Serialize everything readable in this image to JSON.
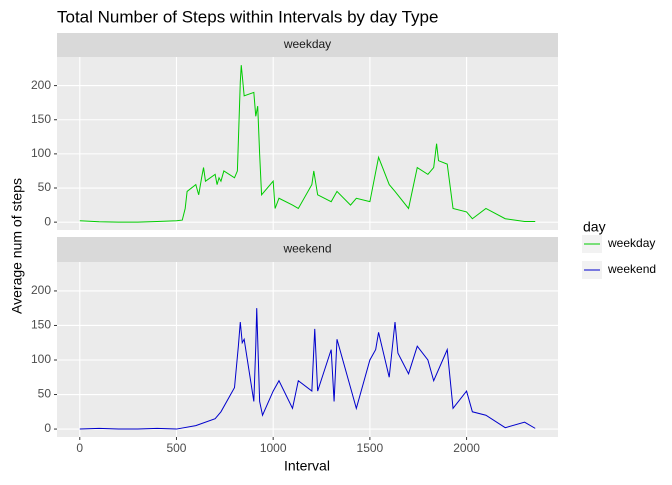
{
  "chart_data": {
    "type": "line",
    "title": "Total Number of Steps within Intervals by day Type",
    "xlabel": "Interval",
    "ylabel": "Average num of steps",
    "legend_title": "day",
    "xlim": [
      -117.75,
      2472.75
    ],
    "xticks": [
      0,
      500,
      1000,
      1500,
      2000
    ],
    "ylim": [
      -11.5,
      241.9
    ],
    "yticks": [
      0,
      50,
      100,
      150,
      200
    ],
    "grid": true,
    "facets": [
      {
        "strip": "weekday",
        "x": [
          0,
          100,
          200,
          300,
          400,
          500,
          530,
          545,
          555,
          600,
          615,
          630,
          640,
          650,
          700,
          710,
          720,
          730,
          745,
          800,
          815,
          830,
          835,
          840,
          850,
          900,
          910,
          920,
          930,
          940,
          1000,
          1010,
          1030,
          1100,
          1130,
          1200,
          1210,
          1230,
          1300,
          1330,
          1400,
          1430,
          1500,
          1545,
          1600,
          1630,
          1700,
          1745,
          1800,
          1830,
          1845,
          1855,
          1900,
          1930,
          2000,
          2030,
          2100,
          2200,
          2300,
          2355
        ],
        "series": [
          {
            "name": "weekday",
            "color": "#00cc00",
            "values": [
              2,
              0.5,
              0,
              0,
              1,
              2,
              3,
              20,
              45,
              55,
              40,
              65,
              80,
              60,
              70,
              55,
              65,
              60,
              75,
              65,
              75,
              205,
              230,
              215,
              185,
              190,
              155,
              170,
              100,
              40,
              60,
              20,
              35,
              25,
              20,
              55,
              75,
              40,
              30,
              45,
              25,
              35,
              30,
              95,
              55,
              45,
              20,
              80,
              70,
              80,
              115,
              90,
              85,
              20,
              15,
              5,
              20,
              5,
              1,
              1
            ]
          }
        ]
      },
      {
        "strip": "weekend",
        "x": [
          0,
          100,
          200,
          300,
          400,
          500,
          600,
          700,
          730,
          800,
          820,
          830,
          840,
          850,
          900,
          910,
          915,
          930,
          945,
          1000,
          1030,
          1100,
          1130,
          1200,
          1215,
          1230,
          1300,
          1315,
          1330,
          1400,
          1430,
          1500,
          1530,
          1545,
          1600,
          1630,
          1645,
          1700,
          1745,
          1800,
          1830,
          1900,
          1930,
          2000,
          2030,
          2100,
          2200,
          2300,
          2355
        ],
        "series": [
          {
            "name": "weekend",
            "color": "#0000cc",
            "values": [
              0,
              1,
              0,
              0,
              1,
              0,
              5,
              15,
              25,
              60,
              120,
              155,
              125,
              130,
              40,
              120,
              175,
              40,
              20,
              55,
              70,
              30,
              70,
              55,
              145,
              55,
              115,
              40,
              130,
              60,
              30,
              100,
              115,
              140,
              75,
              155,
              110,
              80,
              120,
              100,
              70,
              115,
              30,
              55,
              25,
              20,
              2,
              10,
              1
            ]
          }
        ]
      }
    ]
  }
}
